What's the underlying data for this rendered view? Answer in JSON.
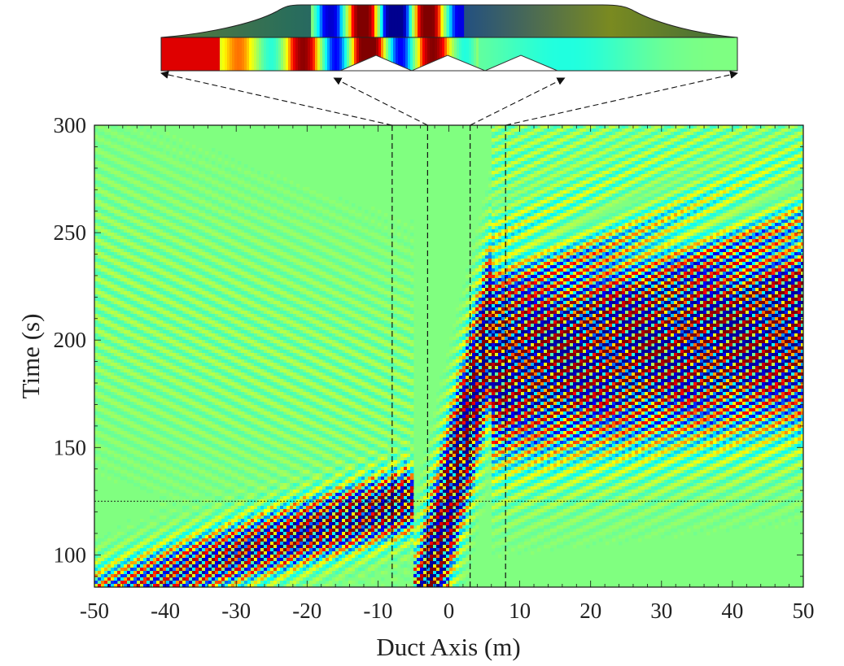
{
  "chart_data": {
    "type": "heatmap",
    "title": "",
    "xlabel": "Duct Axis (m)",
    "ylabel": "Time (s)",
    "xlim": [
      -50,
      50
    ],
    "ylim": [
      85,
      300
    ],
    "x_ticks": [
      -50,
      -40,
      -30,
      -20,
      -10,
      0,
      10,
      20,
      30,
      40,
      50
    ],
    "y_ticks": [
      100,
      150,
      200,
      250,
      300
    ],
    "colormap": [
      "#00008f",
      "#0000ff",
      "#00ffff",
      "#80ff80",
      "#ffff00",
      "#ff0000",
      "#800000"
    ],
    "background_color": "#80ff80",
    "grid": false,
    "reference_lines": {
      "vertical_x": [
        -8,
        -3,
        3,
        8
      ],
      "horizontal_y": [
        125
      ]
    },
    "field": {
      "description_of_structure": [
        {
          "region": "incident wave packet",
          "x_range": [
            -50,
            -5
          ],
          "t_range": [
            85,
            125
          ],
          "amplitude": "high",
          "propagation": "rightward"
        },
        {
          "region": "slowed packet in duct",
          "x_range": [
            -5,
            5
          ],
          "t_range": [
            100,
            260
          ],
          "amplitude": "high",
          "propagation": "slow rightward"
        },
        {
          "region": "transmitted wave packet",
          "x_range": [
            5,
            50
          ],
          "t_range": [
            140,
            300
          ],
          "amplitude": "high",
          "propagation": "rightward"
        },
        {
          "region": "reflected wave",
          "x_range": [
            -50,
            -5
          ],
          "t_range": [
            125,
            300
          ],
          "amplitude": "low",
          "propagation": "leftward"
        }
      ]
    },
    "inset": {
      "type": "duct-geometry-snapshot",
      "maps_to_x": [
        -50,
        -15,
        15,
        50
      ]
    }
  }
}
